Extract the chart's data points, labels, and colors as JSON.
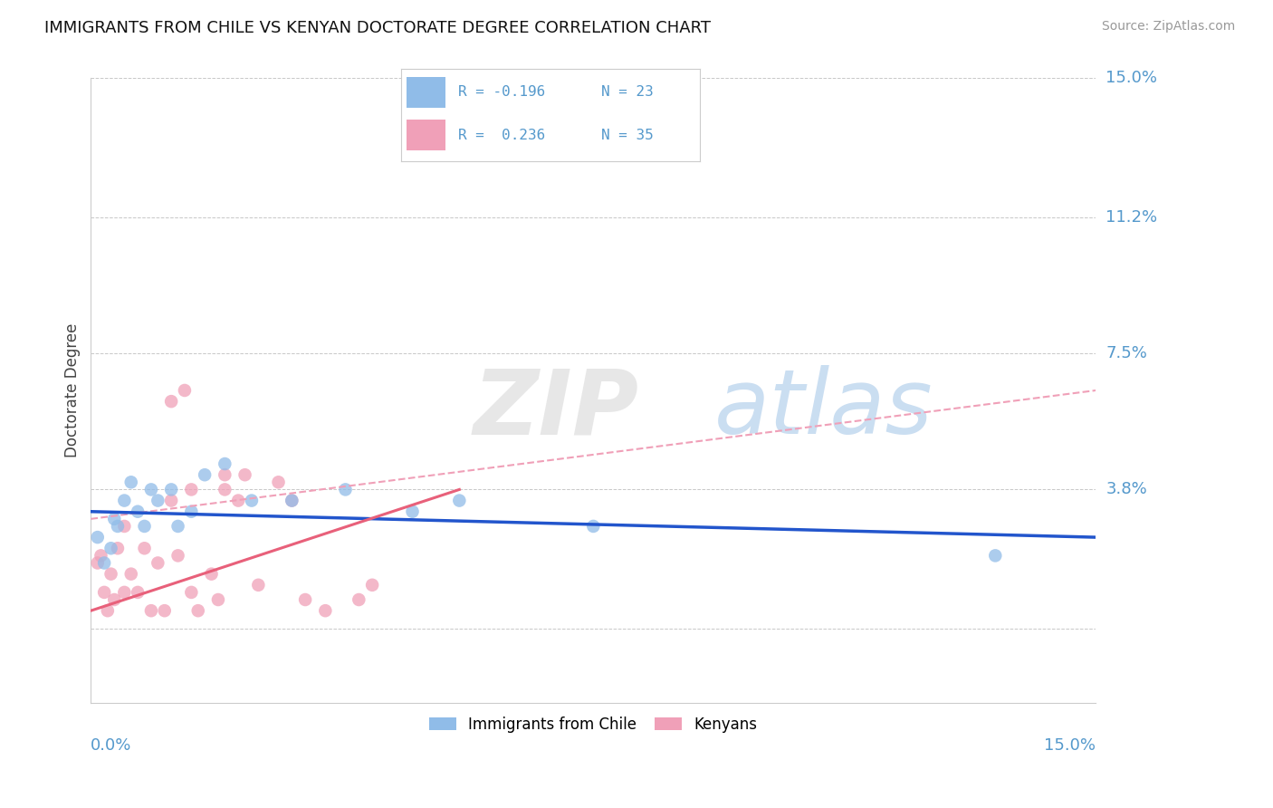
{
  "title": "IMMIGRANTS FROM CHILE VS KENYAN DOCTORATE DEGREE CORRELATION CHART",
  "source": "Source: ZipAtlas.com",
  "ylabel": "Doctorate Degree",
  "xmin": 0.0,
  "xmax": 15.0,
  "ymin": -2.0,
  "ymax": 15.0,
  "yticks": [
    0.0,
    3.8,
    7.5,
    11.2,
    15.0
  ],
  "ytick_labels": [
    "",
    "3.8%",
    "7.5%",
    "11.2%",
    "15.0%"
  ],
  "grid_color": "#c8c8c8",
  "background_color": "#ffffff",
  "legend_r1": "R = -0.196",
  "legend_n1": "N = 23",
  "legend_r2": "R =  0.236",
  "legend_n2": "N = 35",
  "chile_color": "#90bce8",
  "kenya_color": "#f0a0b8",
  "chile_line_color": "#2255cc",
  "kenya_line_color": "#e8607a",
  "kenya_dash_color": "#f0a0b8",
  "chile_scatter_x": [
    0.1,
    0.2,
    0.3,
    0.35,
    0.4,
    0.5,
    0.6,
    0.7,
    0.8,
    0.9,
    1.0,
    1.2,
    1.3,
    1.5,
    1.7,
    2.0,
    2.4,
    3.0,
    3.8,
    4.8,
    5.5,
    7.5,
    13.5
  ],
  "chile_scatter_y": [
    2.5,
    1.8,
    2.2,
    3.0,
    2.8,
    3.5,
    4.0,
    3.2,
    2.8,
    3.8,
    3.5,
    3.8,
    2.8,
    3.2,
    4.2,
    4.5,
    3.5,
    3.5,
    3.8,
    3.2,
    3.5,
    2.8,
    2.0
  ],
  "kenya_scatter_x": [
    0.1,
    0.15,
    0.2,
    0.25,
    0.3,
    0.35,
    0.4,
    0.5,
    0.5,
    0.6,
    0.7,
    0.8,
    0.9,
    1.0,
    1.1,
    1.2,
    1.3,
    1.5,
    1.6,
    1.8,
    1.9,
    2.0,
    2.2,
    2.5,
    2.8,
    3.0,
    3.2,
    3.5,
    4.0,
    4.2,
    1.2,
    1.4,
    1.5,
    2.0,
    2.3
  ],
  "kenya_scatter_y": [
    1.8,
    2.0,
    1.0,
    0.5,
    1.5,
    0.8,
    2.2,
    1.0,
    2.8,
    1.5,
    1.0,
    2.2,
    0.5,
    1.8,
    0.5,
    3.5,
    2.0,
    1.0,
    0.5,
    1.5,
    0.8,
    3.8,
    3.5,
    1.2,
    4.0,
    3.5,
    0.8,
    0.5,
    0.8,
    1.2,
    6.2,
    6.5,
    3.8,
    4.2,
    4.2
  ],
  "chile_reg_x0": 0.0,
  "chile_reg_y0": 3.2,
  "chile_reg_x1": 15.0,
  "chile_reg_y1": 2.5,
  "kenya_solid_x0": 0.0,
  "kenya_solid_y0": 0.5,
  "kenya_solid_x1": 5.5,
  "kenya_solid_y1": 3.8,
  "kenya_dash_x0": 0.0,
  "kenya_dash_y0": 3.0,
  "kenya_dash_x1": 15.0,
  "kenya_dash_y1": 6.5
}
